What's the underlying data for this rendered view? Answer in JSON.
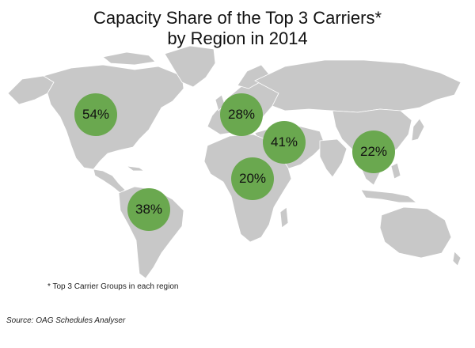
{
  "title": {
    "line1": "Capacity Share of the Top 3 Carriers*",
    "line2": "by Region in 2014"
  },
  "regions": [
    {
      "value": "54%"
    },
    {
      "value": "28%"
    },
    {
      "value": "41%"
    },
    {
      "value": "22%"
    },
    {
      "value": "20%"
    },
    {
      "value": "38%"
    }
  ],
  "footnote": "* Top 3 Carrier Groups in each region",
  "source": "Source: OAG Schedules Analyser",
  "colors": {
    "land": "#c8c8c8",
    "border": "#ffffff",
    "bubble": "#6aa84f"
  }
}
